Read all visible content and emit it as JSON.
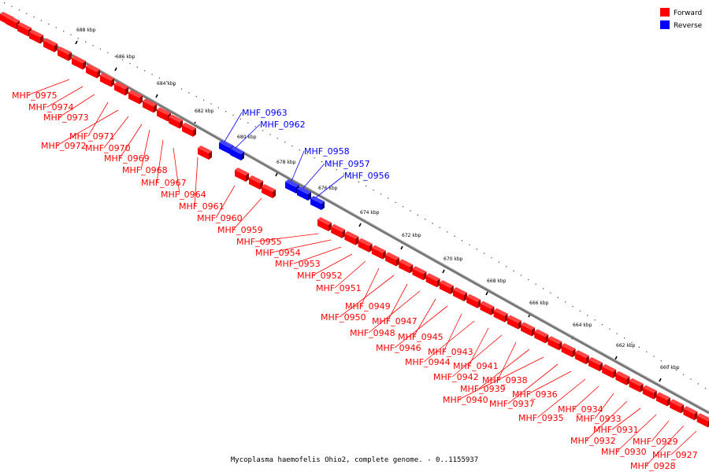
{
  "legend": {
    "forward_label": "Forward",
    "reverse_label": "Reverse",
    "forward_color": "#ff0000",
    "reverse_color": "#0000ff"
  },
  "caption": "Mycoplasma haemofelis Ohio2, complete genome. - 0..1155937",
  "ticks": [
    "688 kbp",
    "686 kbp",
    "684 kbp",
    "682 kbp",
    "680 kbp",
    "678 kbp",
    "676 kbp",
    "674 kbp",
    "672 kbp",
    "670 kbp",
    "668 kbp",
    "666 kbp",
    "664 kbp",
    "662 kbp",
    "660 kbp"
  ],
  "genes_forward": [
    "MHF_0975",
    "MHF_0974",
    "MHF_0973",
    "MHF_0971",
    "MHF_0972",
    "MHF_0970",
    "MHF_0969",
    "MHF_0968",
    "MHF_0967",
    "MHF_0964",
    "MHF_0961",
    "MHF_0960",
    "MHF_0959",
    "MHF_0955",
    "MHF_0954",
    "MHF_0953",
    "MHF_0952",
    "MHF_0951",
    "MHF_0949",
    "MHF_0950",
    "MHF_0947",
    "MHF_0948",
    "MHF_0945",
    "MHF_0946",
    "MHF_0943",
    "MHF_0944",
    "MHF_0941",
    "MHF_0942",
    "MHF_0938",
    "MHF_0939",
    "MHF_0940",
    "MHF_0937",
    "MHF_0936",
    "MHF_0935",
    "MHF_0934",
    "MHF_0933",
    "MHF_0932",
    "MHF_0931",
    "MHF_0930",
    "MHF_0929",
    "MHF_0928",
    "MHF_0927"
  ],
  "genes_reverse": [
    "MHF_0963",
    "MHF_0962",
    "MHF_0958",
    "MHF_0957",
    "MHF_0956"
  ]
}
